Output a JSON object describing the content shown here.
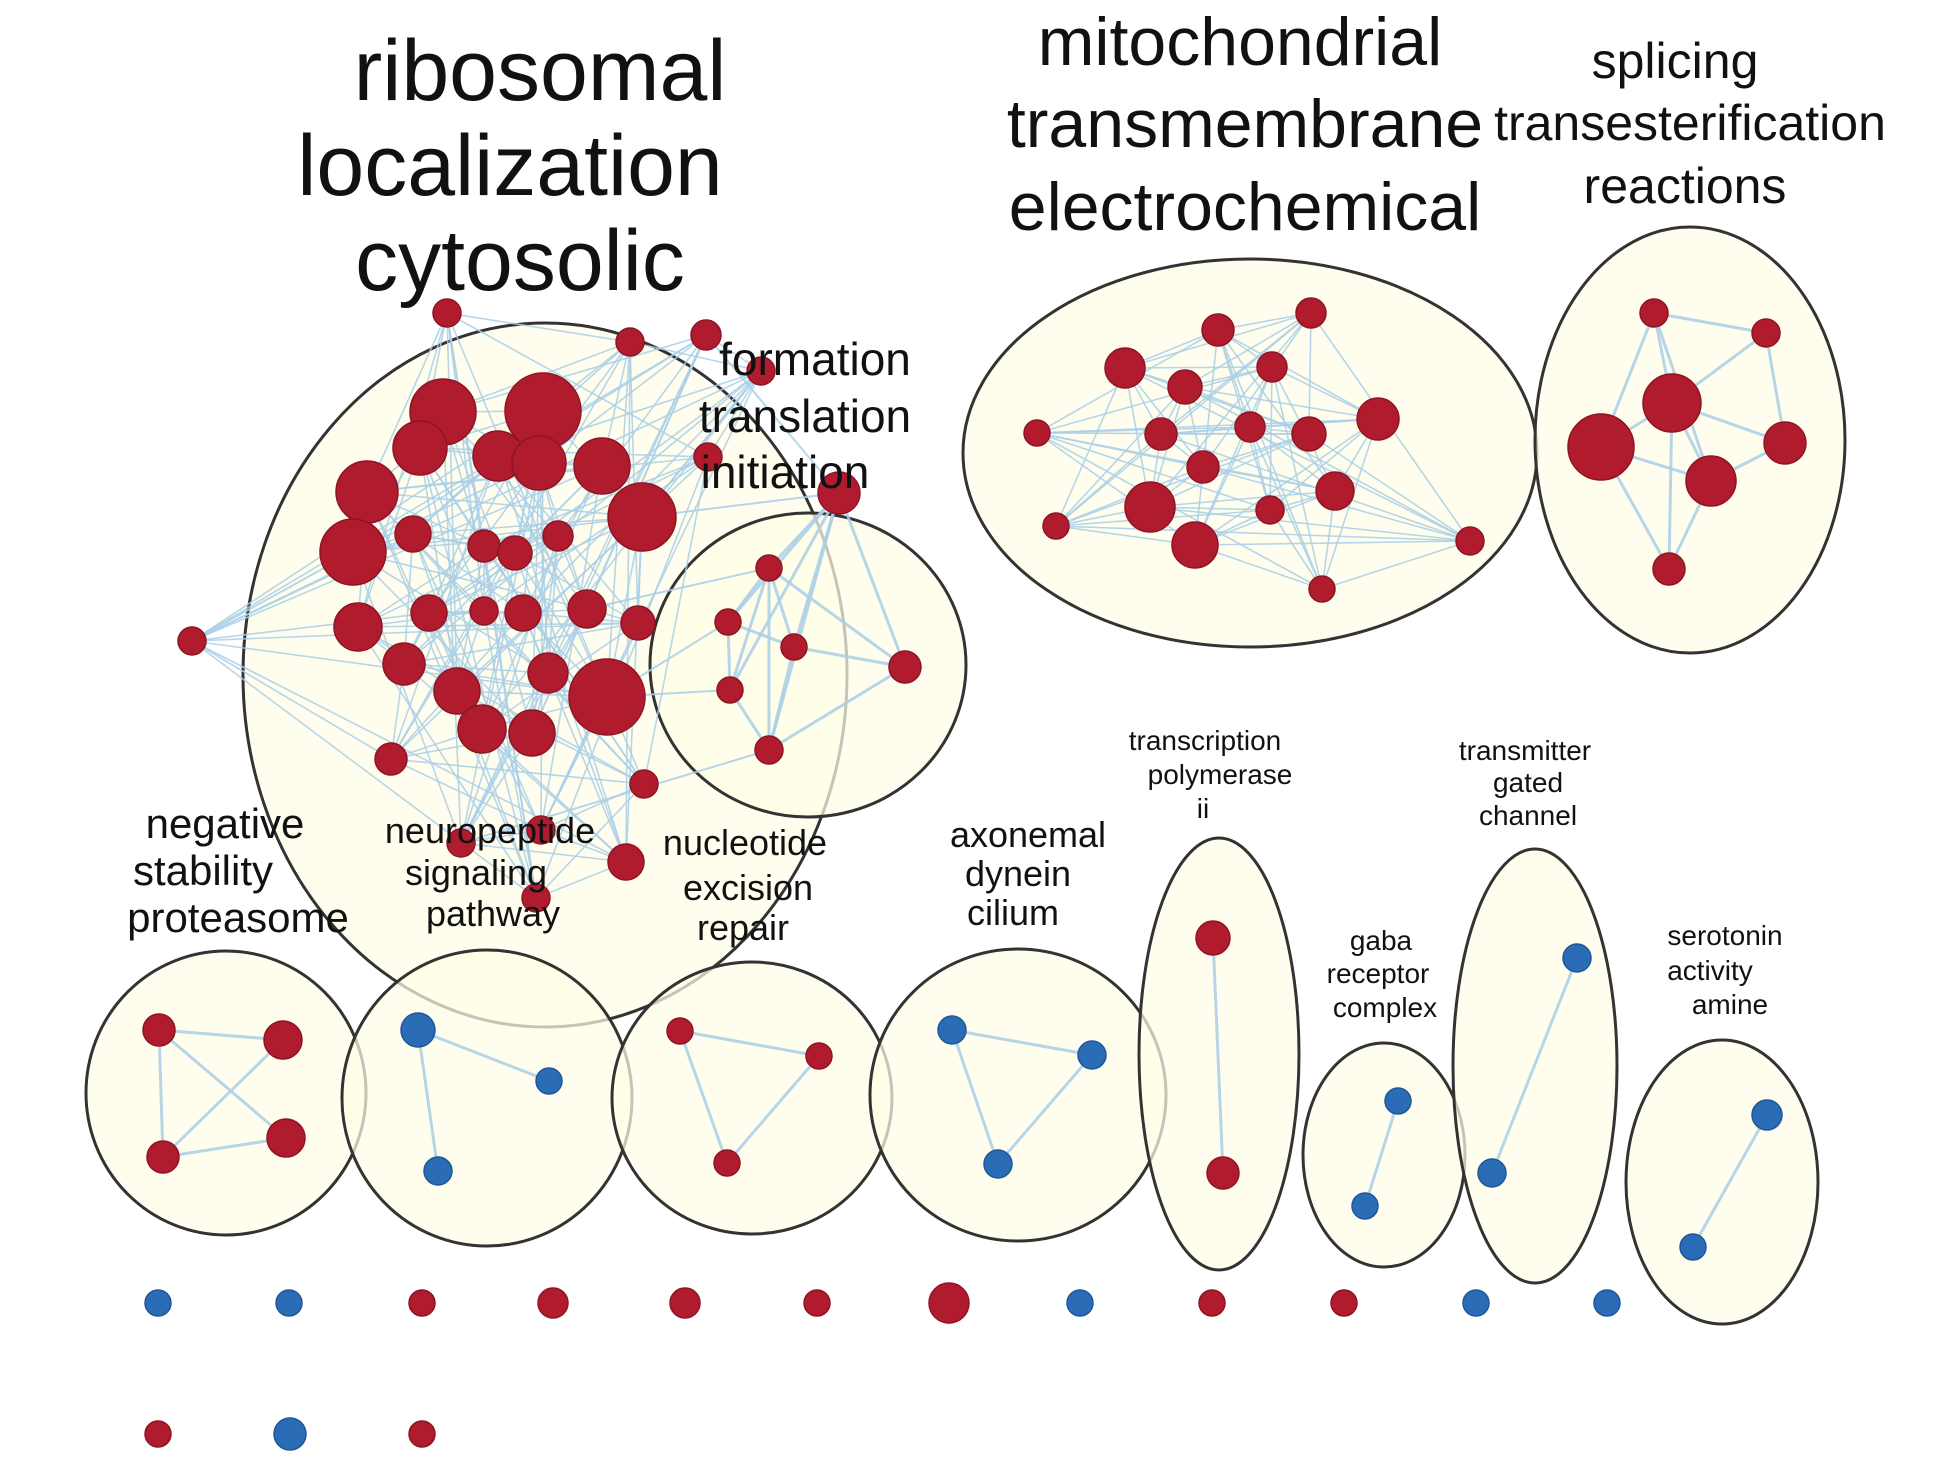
{
  "colors": {
    "red_node": "#B01C2E",
    "blue_node": "#2A6CB5",
    "edge": "#A9CFE6",
    "cluster_fill": "#FFFDE8",
    "cluster_stroke": "#333333"
  },
  "clusters": [
    {
      "id": "ribosomal",
      "label_lines": [
        "ribosomal",
        "localization",
        "cytosolic"
      ]
    },
    {
      "id": "translation",
      "label_lines": [
        "formation",
        "translation",
        "initiation"
      ]
    },
    {
      "id": "mitochondrial",
      "label_lines": [
        "mitochondrial",
        "transmembrane",
        "electrochemical"
      ]
    },
    {
      "id": "splicing",
      "label_lines": [
        "splicing",
        "transesterification",
        "reactions"
      ]
    },
    {
      "id": "proteasome",
      "label_lines": [
        "negative",
        "stability",
        "proteasome"
      ]
    },
    {
      "id": "neuropeptide",
      "label_lines": [
        "neuropeptide",
        "signaling",
        "pathway"
      ]
    },
    {
      "id": "nucleotide",
      "label_lines": [
        "nucleotide",
        "excision",
        "repair"
      ]
    },
    {
      "id": "axonemal",
      "label_lines": [
        "axonemal",
        "dynein",
        "cilium"
      ]
    },
    {
      "id": "transcription",
      "label_lines": [
        "transcription",
        "polymerase",
        "ii"
      ]
    },
    {
      "id": "gaba",
      "label_lines": [
        "gaba",
        "receptor",
        "complex"
      ]
    },
    {
      "id": "transmitter",
      "label_lines": [
        "transmitter",
        "gated",
        "channel"
      ]
    },
    {
      "id": "serotonin",
      "label_lines": [
        "serotonin",
        "activity",
        "amine"
      ]
    }
  ]
}
